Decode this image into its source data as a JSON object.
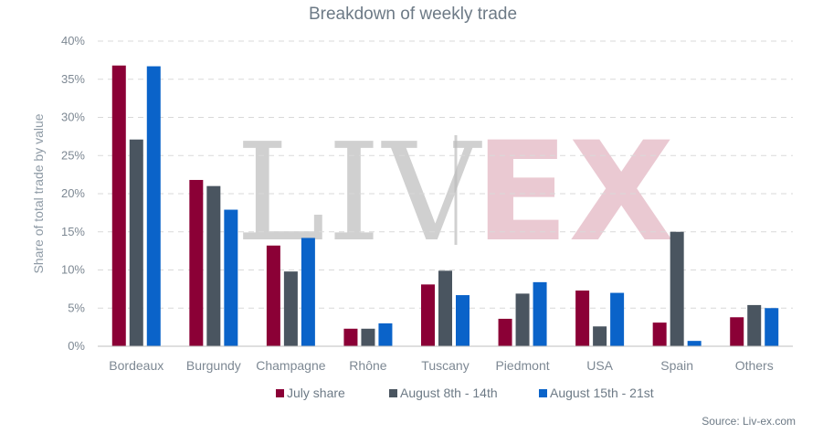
{
  "chart_data": {
    "type": "bar",
    "title": "Breakdown of weekly trade",
    "ylabel": "Share of total trade by value",
    "xlabel": "",
    "ylim": [
      0,
      40
    ],
    "y_ticks": [
      "0%",
      "5%",
      "10%",
      "15%",
      "20%",
      "25%",
      "30%",
      "35%",
      "40%"
    ],
    "y_tick_values": [
      0,
      5,
      10,
      15,
      20,
      25,
      30,
      35,
      40
    ],
    "grid": true,
    "legend_position": "bottom",
    "categories": [
      "Bordeaux",
      "Burgundy",
      "Champagne",
      "Rhône",
      "Tuscany",
      "Piedmont",
      "USA",
      "Spain",
      "Others"
    ],
    "series": [
      {
        "name": "July share",
        "color": "#8b0036",
        "values": [
          36.8,
          21.8,
          13.2,
          2.3,
          8.1,
          3.6,
          7.3,
          3.1,
          3.8
        ]
      },
      {
        "name": "August 8th - 14th",
        "color": "#4a5560",
        "values": [
          27.1,
          21.0,
          9.8,
          2.3,
          9.9,
          6.9,
          2.6,
          15.0,
          5.4
        ]
      },
      {
        "name": "August 15th - 21st",
        "color": "#0a63c9",
        "values": [
          36.7,
          17.9,
          14.2,
          3.0,
          6.7,
          8.4,
          7.0,
          0.7,
          5.0
        ]
      }
    ]
  },
  "watermark": {
    "left": "LIV",
    "right": "EX"
  },
  "source": "Source: Liv-ex.com"
}
